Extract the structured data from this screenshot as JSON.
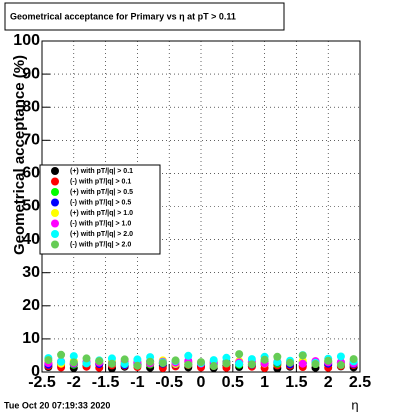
{
  "chart_data": {
    "type": "scatter",
    "title": "Geometrical acceptance for Primary vs   η at pT > 0.11",
    "y_label": "Geometrical acceptance (%)",
    "x_label": "η",
    "timestamp": "Tue Oct 20 07:19:33 2020",
    "xlim": [
      -2.5,
      2.5
    ],
    "xticks": [
      -2.5,
      -2,
      -1.5,
      -1,
      -0.5,
      0,
      0.5,
      1,
      1.5,
      2,
      2.5
    ],
    "ylim": [
      0,
      100
    ],
    "yticks": [
      0,
      10,
      20,
      30,
      40,
      50,
      60,
      70,
      80,
      90,
      100
    ],
    "grid": true,
    "legend": "left",
    "x": [
      -2.4,
      -2.2,
      -2.0,
      -1.8,
      -1.6,
      -1.4,
      -1.2,
      -1.0,
      -0.8,
      -0.6,
      -0.4,
      -0.2,
      0.0,
      0.2,
      0.4,
      0.6,
      0.8,
      1.0,
      1.2,
      1.4,
      1.6,
      1.8,
      2.0,
      2.2,
      2.4
    ],
    "series": [
      {
        "name": "(+) with pT/|q| > 0.1",
        "color": "#000000",
        "values": [
          1.5,
          2.1,
          1.2,
          1.8,
          2.4,
          1.1,
          1.6,
          2.0,
          1.3,
          1.9,
          2.2,
          1.4,
          1.7,
          1.2,
          2.0,
          1.5,
          1.8,
          2.3,
          1.1,
          1.6,
          1.9,
          1.3,
          2.1,
          1.7,
          1.4
        ]
      },
      {
        "name": "(-) with pT/|q| > 0.1",
        "color": "#ff0000",
        "values": [
          1.8,
          1.4,
          2.2,
          1.6,
          1.3,
          2.0,
          1.9,
          1.5,
          2.3,
          1.2,
          1.7,
          2.1,
          1.4,
          1.8,
          1.3,
          2.2,
          1.6,
          1.2,
          2.0,
          1.9,
          1.5,
          2.4,
          1.3,
          1.8,
          2.1
        ]
      },
      {
        "name": "(+) with pT/|q| > 0.5",
        "color": "#00ff00",
        "values": [
          2.6,
          3.1,
          2.2,
          2.9,
          3.4,
          2.5,
          2.7,
          3.0,
          2.3,
          2.8,
          3.2,
          2.4,
          2.6,
          2.9,
          3.1,
          2.2,
          2.8,
          3.3,
          2.5,
          2.7,
          3.0,
          2.4,
          3.2,
          2.6,
          2.9
        ]
      },
      {
        "name": "(-) with pT/|q| > 0.5",
        "color": "#0000ff",
        "values": [
          2.2,
          2.8,
          2.5,
          3.0,
          2.4,
          2.9,
          2.1,
          2.7,
          3.2,
          2.5,
          2.3,
          2.9,
          2.6,
          2.4,
          2.8,
          3.1,
          2.2,
          2.6,
          2.9,
          2.3,
          2.7,
          3.0,
          2.5,
          2.8,
          2.4
        ]
      },
      {
        "name": "(+) with pT/|q| > 1.0",
        "color": "#ffff00",
        "values": [
          3.0,
          2.5,
          3.3,
          2.7,
          2.9,
          3.4,
          2.6,
          3.1,
          2.8,
          3.5,
          2.4,
          3.0,
          2.7,
          3.2,
          2.6,
          3.3,
          2.9,
          2.5,
          3.1,
          2.8,
          3.4,
          2.6,
          3.0,
          2.7,
          3.2
        ]
      },
      {
        "name": "(-) with pT/|q| > 1.0",
        "color": "#ff00ff",
        "values": [
          2.7,
          3.2,
          2.6,
          3.0,
          2.8,
          2.5,
          3.3,
          2.9,
          2.6,
          3.1,
          2.8,
          3.4,
          2.5,
          3.0,
          2.7,
          2.9,
          3.2,
          2.6,
          3.1,
          2.8,
          2.5,
          3.3,
          2.9,
          3.0,
          2.6
        ]
      },
      {
        "name": "(+) with pT/|q| > 2.0",
        "color": "#00ffff",
        "values": [
          4.2,
          3.1,
          4.8,
          2.6,
          3.5,
          4.1,
          2.4,
          3.8,
          4.5,
          2.9,
          3.3,
          4.9,
          2.7,
          3.6,
          4.3,
          2.5,
          3.9,
          4.6,
          3.0,
          3.4,
          5.1,
          2.8,
          4.0,
          4.7,
          3.2
        ]
      },
      {
        "name": "(-) with pT/|q| > 2.0",
        "color": "#66cc55",
        "values": [
          3.6,
          5.2,
          2.9,
          4.1,
          3.3,
          2.5,
          3.8,
          1.9,
          3.1,
          2.7,
          3.5,
          2.2,
          3.0,
          1.8,
          2.6,
          5.4,
          2.3,
          3.7,
          4.6,
          2.8,
          5.0,
          2.4,
          3.4,
          2.1,
          3.9
        ]
      }
    ]
  }
}
